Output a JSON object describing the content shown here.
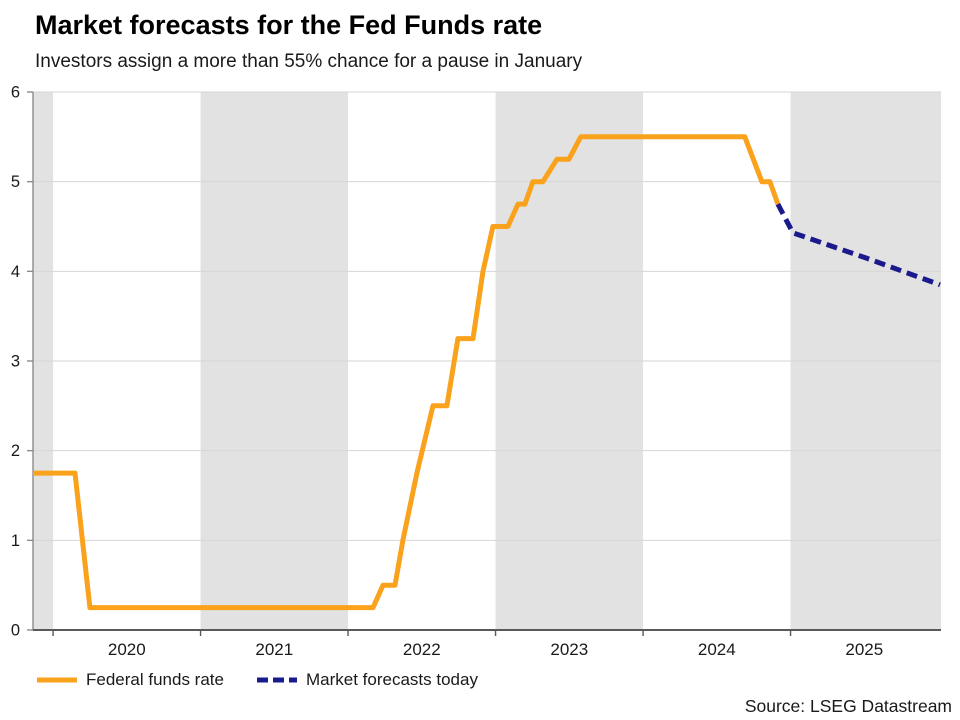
{
  "header": {
    "title_note": "bound from chart_data"
  },
  "footer": {
    "source": "Source: LSEG Datastream"
  },
  "chart_data": {
    "type": "line",
    "title": "Market forecasts for the Fed Funds rate",
    "subtitle": "Investors assign a more than 55% chance for a pause in January",
    "source": "Source: LSEG Datastream",
    "xlabel": "",
    "ylabel": "",
    "x_domain": [
      2019.864,
      2026.02
    ],
    "y_domain": [
      0,
      6
    ],
    "y_ticks": [
      0,
      1,
      2,
      3,
      4,
      5,
      6
    ],
    "x_ticks": [
      2020,
      2021,
      2022,
      2023,
      2024,
      2025
    ],
    "x_tick_labels": [
      {
        "label": "2020",
        "t": 2020.5
      },
      {
        "label": "2021",
        "t": 2021.5
      },
      {
        "label": "2022",
        "t": 2022.5
      },
      {
        "label": "2023",
        "t": 2023.5
      },
      {
        "label": "2024",
        "t": 2024.5
      },
      {
        "label": "2025",
        "t": 2025.5
      }
    ],
    "grid": "horizontal",
    "legend_position": "bottom-left",
    "shaded_bands": [
      [
        2019.864,
        2020.0
      ],
      [
        2021.0,
        2022.0
      ],
      [
        2023.0,
        2024.0
      ],
      [
        2025.0,
        2026.02
      ]
    ],
    "colors": {
      "band": "#e2e2e2",
      "gridline": "#d6d6d6",
      "axis_left": "#8c8c8c",
      "axis_bottom": "#595959",
      "tick_label": "#1a1a1a"
    },
    "series": [
      {
        "name": "Federal funds rate",
        "color": "#faa21b",
        "style": "solid",
        "points": [
          [
            2019.864,
            1.75
          ],
          [
            2020.149,
            1.75
          ],
          [
            2020.25,
            0.25
          ],
          [
            2022.169,
            0.25
          ],
          [
            2022.237,
            0.5
          ],
          [
            2022.318,
            0.5
          ],
          [
            2022.372,
            1.0
          ],
          [
            2022.467,
            1.75
          ],
          [
            2022.576,
            2.5
          ],
          [
            2022.67,
            2.5
          ],
          [
            2022.745,
            3.25
          ],
          [
            2022.847,
            3.25
          ],
          [
            2022.915,
            4.0
          ],
          [
            2022.982,
            4.5
          ],
          [
            2023.084,
            4.5
          ],
          [
            2023.152,
            4.75
          ],
          [
            2023.199,
            4.75
          ],
          [
            2023.253,
            5.0
          ],
          [
            2023.321,
            5.0
          ],
          [
            2023.416,
            5.25
          ],
          [
            2023.497,
            5.25
          ],
          [
            2023.578,
            5.5
          ],
          [
            2024.69,
            5.5
          ],
          [
            2024.806,
            5.0
          ],
          [
            2024.86,
            5.0
          ],
          [
            2024.914,
            4.75
          ]
        ]
      },
      {
        "name": "Market forecasts today",
        "color": "#1a1a8c",
        "style": "dashed",
        "points": [
          [
            2024.914,
            4.75
          ],
          [
            2025.016,
            4.43
          ],
          [
            2025.51,
            4.15
          ],
          [
            2026.013,
            3.85
          ]
        ]
      }
    ]
  }
}
